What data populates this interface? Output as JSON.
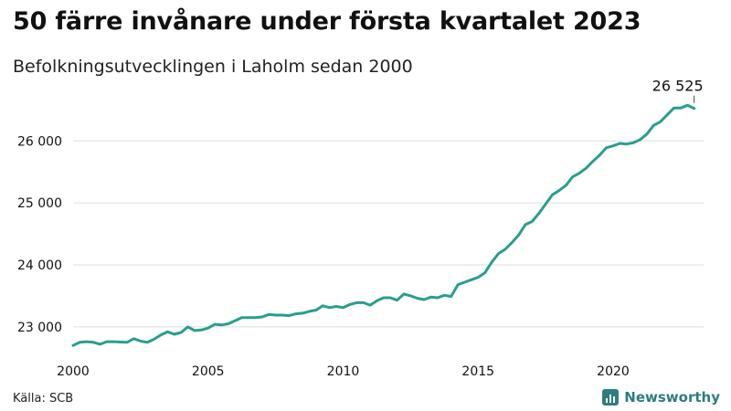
{
  "title": "50 färre invånare under första kvartalet 2023",
  "subtitle": "Befolkningsutvecklingen i Laholm sedan 2000",
  "source": "Källa: SCB",
  "brand": {
    "name": "Newsworthy",
    "icon": "bar-chart-icon",
    "color": "#2e7d80"
  },
  "colors": {
    "line": "#2a9d8f",
    "grid": "#dddddd",
    "text": "#111111",
    "axis": "#333333"
  },
  "chart_data": {
    "type": "line",
    "title": "50 färre invånare under första kvartalet 2023",
    "subtitle": "Befolkningsutvecklingen i Laholm sedan 2000",
    "xlim": [
      2000,
      2023.25
    ],
    "ylim": [
      22600,
      26800
    ],
    "x_ticks": [
      2000,
      2005,
      2010,
      2015,
      2020
    ],
    "x_tick_labels": [
      "2000",
      "2005",
      "2010",
      "2015",
      "2020"
    ],
    "y_ticks": [
      23000,
      24000,
      25000,
      26000
    ],
    "y_tick_labels": [
      "23 000",
      "24 000",
      "25 000",
      "26 000"
    ],
    "grid": "horizontal",
    "end_label": "26 525",
    "series": [
      {
        "x": [
          2000,
          2000.25,
          2000.5,
          2000.75,
          2001,
          2001.25,
          2001.5,
          2001.75,
          2002,
          2002.25,
          2002.5,
          2002.75,
          2003,
          2003.25,
          2003.5,
          2003.75,
          2004,
          2004.25,
          2004.5,
          2004.75,
          2005,
          2005.25,
          2005.5,
          2005.75,
          2006,
          2006.25,
          2006.5,
          2006.75,
          2007,
          2007.25,
          2007.5,
          2007.75,
          2008,
          2008.25,
          2008.5,
          2008.75,
          2009,
          2009.25,
          2009.5,
          2009.75,
          2010,
          2010.25,
          2010.5,
          2010.75,
          2011,
          2011.25,
          2011.5,
          2011.75,
          2012,
          2012.25,
          2012.5,
          2012.75,
          2013,
          2013.25,
          2013.5,
          2013.75,
          2014,
          2014.25,
          2014.5,
          2014.75,
          2015,
          2015.25,
          2015.5,
          2015.75,
          2016,
          2016.25,
          2016.5,
          2016.75,
          2017,
          2017.25,
          2017.5,
          2017.75,
          2018,
          2018.25,
          2018.5,
          2018.75,
          2019,
          2019.25,
          2019.5,
          2019.75,
          2020,
          2020.25,
          2020.5,
          2020.75,
          2021,
          2021.25,
          2021.5,
          2021.75,
          2022,
          2022.25,
          2022.5,
          2022.75,
          2023
        ],
        "values": [
          22700,
          22750,
          22760,
          22750,
          22720,
          22760,
          22760,
          22755,
          22750,
          22810,
          22770,
          22750,
          22800,
          22870,
          22920,
          22880,
          22910,
          23000,
          22940,
          22950,
          22980,
          23040,
          23030,
          23050,
          23100,
          23150,
          23150,
          23150,
          23160,
          23200,
          23190,
          23190,
          23180,
          23210,
          23220,
          23250,
          23270,
          23340,
          23310,
          23330,
          23310,
          23360,
          23390,
          23390,
          23350,
          23420,
          23470,
          23470,
          23430,
          23530,
          23500,
          23460,
          23440,
          23480,
          23470,
          23510,
          23490,
          23680,
          23720,
          23760,
          23800,
          23870,
          24040,
          24180,
          24250,
          24360,
          24480,
          24650,
          24700,
          24830,
          24980,
          25130,
          25200,
          25280,
          25420,
          25480,
          25560,
          25670,
          25770,
          25890,
          25920,
          25960,
          25950,
          25970,
          26020,
          26110,
          26250,
          26310,
          26420,
          26530,
          26530,
          26575,
          26525
        ]
      }
    ]
  }
}
